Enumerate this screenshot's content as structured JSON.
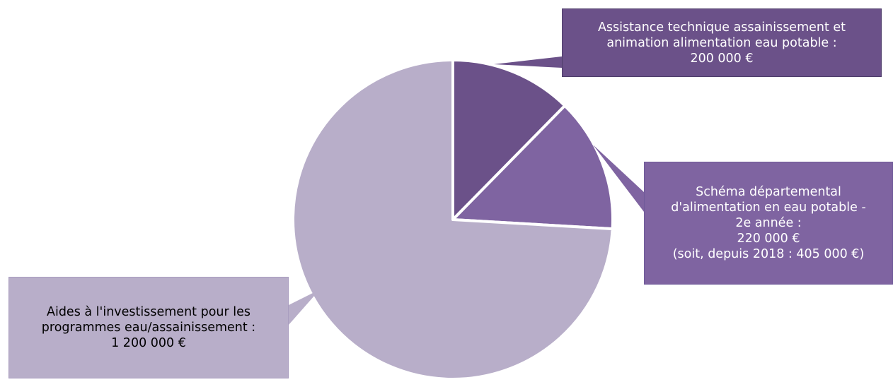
{
  "chart_data": {
    "type": "pie",
    "start_angle": "12 o'clock",
    "direction": "clockwise",
    "slices": [
      {
        "label": "Assistance technique assainissement et animation alimentation eau potable",
        "value": 200000,
        "color": "#6b5189",
        "callout_lines": [
          "Assistance technique assainissement  et",
          "animation alimentation eau potable :",
          "200 000 €"
        ]
      },
      {
        "label": "Schéma départemental d'alimentation en eau potable - 2e année",
        "value": 220000,
        "color": "#7f64a1",
        "callout_lines": [
          "Schéma départemental",
          "d'alimentation en eau potable -",
          "2e année :",
          "220 000 €",
          "(soit, depuis 2018 : 405 000 €)"
        ]
      },
      {
        "label": "Aides à l'investissement pour les programmes eau/assainissement",
        "value": 1200000,
        "color": "#b8aec9",
        "callout_lines": [
          "Aides à l'investissement pour les",
          "programmes eau/assainissement :",
          "1 200 000 €"
        ]
      }
    ]
  }
}
